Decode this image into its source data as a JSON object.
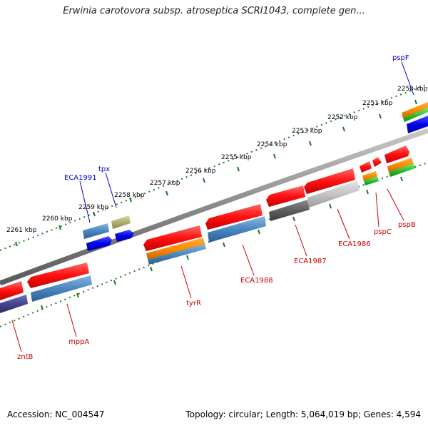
{
  "title": "Erwinia carotovora subsp. atroseptica SCRI1043, complete gen...",
  "footer": {
    "accession": "Accession: NC_004547",
    "summary": "Topology: circular; Length: 5,064,019 bp; Genes: 4,594"
  },
  "colors": {
    "backbone": "#8a8a8a",
    "tick": "#227722",
    "label_forward": "#0000cc",
    "label_reverse": "#cc0000"
  },
  "kbp_labels": [
    "2250 kbp",
    "2251 kbp",
    "2252 kbp",
    "2253 kbp",
    "2254 kbp",
    "2255 kbp",
    "2256 kbp",
    "2257 kbp",
    "2258 kbp",
    "2259 kbp",
    "2260 kbp",
    "2261 kbp"
  ],
  "gene_labels": [
    {
      "text": "pspF",
      "strand": "forward"
    },
    {
      "text": "tpx",
      "strand": "forward"
    },
    {
      "text": "ECA1991",
      "strand": "forward"
    },
    {
      "text": "pspB",
      "strand": "reverse"
    },
    {
      "text": "pspC",
      "strand": "reverse"
    },
    {
      "text": "ECA1986",
      "strand": "reverse"
    },
    {
      "text": "ECA1987",
      "strand": "reverse"
    },
    {
      "text": "ECA1988",
      "strand": "reverse"
    },
    {
      "text": "tyrR",
      "strand": "reverse"
    },
    {
      "text": "mppA",
      "strand": "reverse"
    },
    {
      "text": "zntB",
      "strand": "reverse"
    }
  ]
}
